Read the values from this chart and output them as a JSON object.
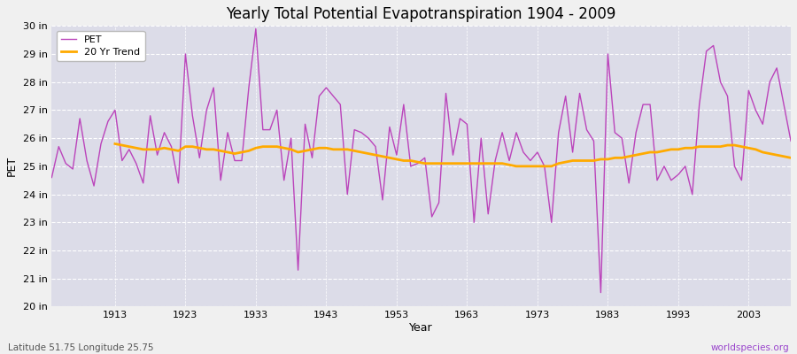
{
  "title": "Yearly Total Potential Evapotranspiration 1904 - 2009",
  "xlabel": "Year",
  "ylabel": "PET",
  "subtitle_left": "Latitude 51.75 Longitude 25.75",
  "subtitle_right": "worldspecies.org",
  "bg_color": "#f0f0f0",
  "plot_bg_color": "#dcdce8",
  "pet_color": "#bb44bb",
  "trend_color": "#ffaa00",
  "ylim": [
    20,
    30
  ],
  "ytick_labels": [
    "20 in",
    "21 in",
    "22 in",
    "23 in",
    "24 in",
    "25 in",
    "26 in",
    "27 in",
    "28 in",
    "29 in",
    "30 in"
  ],
  "ytick_values": [
    20,
    21,
    22,
    23,
    24,
    25,
    26,
    27,
    28,
    29,
    30
  ],
  "years": [
    1904,
    1905,
    1906,
    1907,
    1908,
    1909,
    1910,
    1911,
    1912,
    1913,
    1914,
    1915,
    1916,
    1917,
    1918,
    1919,
    1920,
    1921,
    1922,
    1923,
    1924,
    1925,
    1926,
    1927,
    1928,
    1929,
    1930,
    1931,
    1932,
    1933,
    1934,
    1935,
    1936,
    1937,
    1938,
    1939,
    1940,
    1941,
    1942,
    1943,
    1944,
    1945,
    1946,
    1947,
    1948,
    1949,
    1950,
    1951,
    1952,
    1953,
    1954,
    1955,
    1956,
    1957,
    1958,
    1959,
    1960,
    1961,
    1962,
    1963,
    1964,
    1965,
    1966,
    1967,
    1968,
    1969,
    1970,
    1971,
    1972,
    1973,
    1974,
    1975,
    1976,
    1977,
    1978,
    1979,
    1980,
    1981,
    1982,
    1983,
    1984,
    1985,
    1986,
    1987,
    1988,
    1989,
    1990,
    1991,
    1992,
    1993,
    1994,
    1995,
    1996,
    1997,
    1998,
    1999,
    2000,
    2001,
    2002,
    2003,
    2004,
    2005,
    2006,
    2007,
    2008,
    2009
  ],
  "pet_values": [
    24.6,
    25.7,
    25.1,
    24.9,
    26.7,
    25.2,
    24.3,
    25.8,
    26.6,
    27.0,
    25.2,
    25.6,
    25.1,
    24.4,
    26.8,
    25.4,
    26.2,
    25.7,
    24.4,
    29.0,
    26.8,
    25.3,
    27.0,
    27.8,
    24.5,
    26.2,
    25.2,
    25.2,
    27.8,
    29.9,
    26.3,
    26.3,
    27.0,
    24.5,
    26.0,
    21.3,
    26.5,
    25.3,
    27.5,
    27.8,
    27.5,
    27.2,
    24.0,
    26.3,
    26.2,
    26.0,
    25.7,
    23.8,
    26.4,
    25.4,
    27.2,
    25.0,
    25.1,
    25.3,
    23.2,
    23.7,
    27.6,
    25.4,
    26.7,
    26.5,
    23.0,
    26.0,
    23.3,
    25.2,
    26.2,
    25.2,
    26.2,
    25.5,
    25.2,
    25.5,
    25.0,
    23.0,
    26.2,
    27.5,
    25.5,
    27.6,
    26.3,
    25.9,
    20.5,
    29.0,
    26.2,
    26.0,
    24.4,
    26.2,
    27.2,
    27.2,
    24.5,
    25.0,
    24.5,
    24.7,
    25.0,
    24.0,
    27.2,
    29.1,
    29.3,
    28.0,
    27.5,
    25.0,
    24.5,
    27.7,
    27.0,
    26.5,
    28.0,
    28.5,
    27.2,
    25.9
  ],
  "trend_years": [
    1913,
    1914,
    1915,
    1916,
    1917,
    1918,
    1919,
    1920,
    1921,
    1922,
    1923,
    1924,
    1925,
    1926,
    1927,
    1928,
    1929,
    1930,
    1931,
    1932,
    1933,
    1934,
    1935,
    1936,
    1937,
    1938,
    1939,
    1940,
    1941,
    1942,
    1943,
    1944,
    1945,
    1946,
    1947,
    1948,
    1949,
    1950,
    1951,
    1952,
    1953,
    1954,
    1955,
    1956,
    1957,
    1958,
    1959,
    1960,
    1961,
    1962,
    1963,
    1964,
    1965,
    1966,
    1967,
    1968,
    1969,
    1970,
    1971,
    1972,
    1973,
    1974,
    1975,
    1976,
    1977,
    1978,
    1979,
    1980,
    1981,
    1982,
    1983,
    1984,
    1985,
    1986,
    1987,
    1988,
    1989,
    1990,
    1991,
    1992,
    1993,
    1994,
    1995,
    1996,
    1997,
    1998,
    1999,
    2000,
    2001,
    2002,
    2003,
    2004,
    2005,
    2006,
    2007,
    2008,
    2009
  ],
  "trend_values": [
    25.8,
    25.75,
    25.7,
    25.65,
    25.6,
    25.6,
    25.6,
    25.65,
    25.6,
    25.55,
    25.7,
    25.7,
    25.65,
    25.6,
    25.6,
    25.55,
    25.5,
    25.45,
    25.5,
    25.55,
    25.65,
    25.7,
    25.7,
    25.7,
    25.65,
    25.6,
    25.5,
    25.55,
    25.6,
    25.65,
    25.65,
    25.6,
    25.6,
    25.6,
    25.55,
    25.5,
    25.45,
    25.4,
    25.35,
    25.3,
    25.25,
    25.2,
    25.2,
    25.15,
    25.1,
    25.1,
    25.1,
    25.1,
    25.1,
    25.1,
    25.1,
    25.1,
    25.1,
    25.1,
    25.1,
    25.1,
    25.05,
    25.0,
    25.0,
    25.0,
    25.0,
    25.0,
    25.0,
    25.1,
    25.15,
    25.2,
    25.2,
    25.2,
    25.2,
    25.25,
    25.25,
    25.3,
    25.3,
    25.35,
    25.4,
    25.45,
    25.5,
    25.5,
    25.55,
    25.6,
    25.6,
    25.65,
    25.65,
    25.7,
    25.7,
    25.7,
    25.7,
    25.75,
    25.75,
    25.7,
    25.65,
    25.6,
    25.5,
    25.45,
    25.4,
    25.35,
    25.3
  ]
}
